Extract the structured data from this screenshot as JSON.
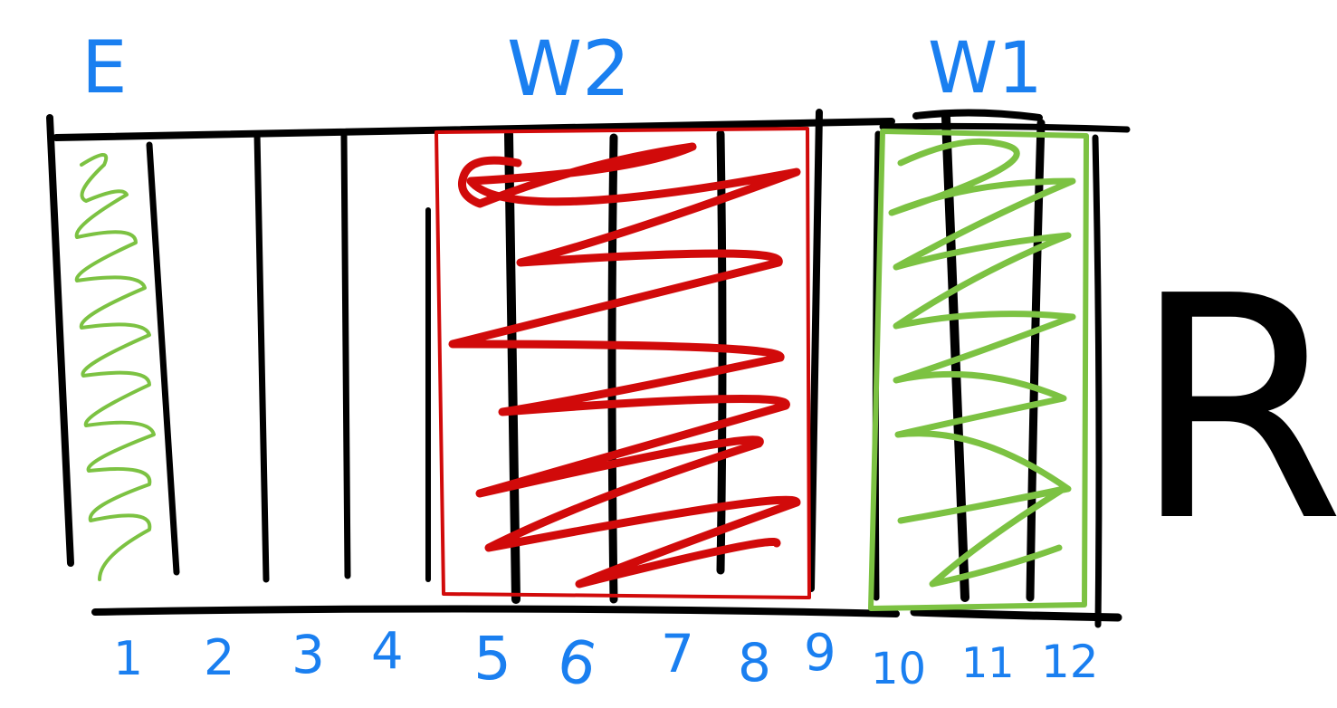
{
  "labels": {
    "e": "E",
    "w2": "W2",
    "w1": "W1",
    "r": "R"
  },
  "strip_numbers": [
    "1",
    "2",
    "3",
    "4",
    "5",
    "6",
    "7",
    "8",
    "9",
    "10",
    "11",
    "12"
  ],
  "colors": {
    "ink": "#000000",
    "label_blue": "#1a7ff0",
    "w2_red": "#d10a0a",
    "green": "#7cc242"
  }
}
